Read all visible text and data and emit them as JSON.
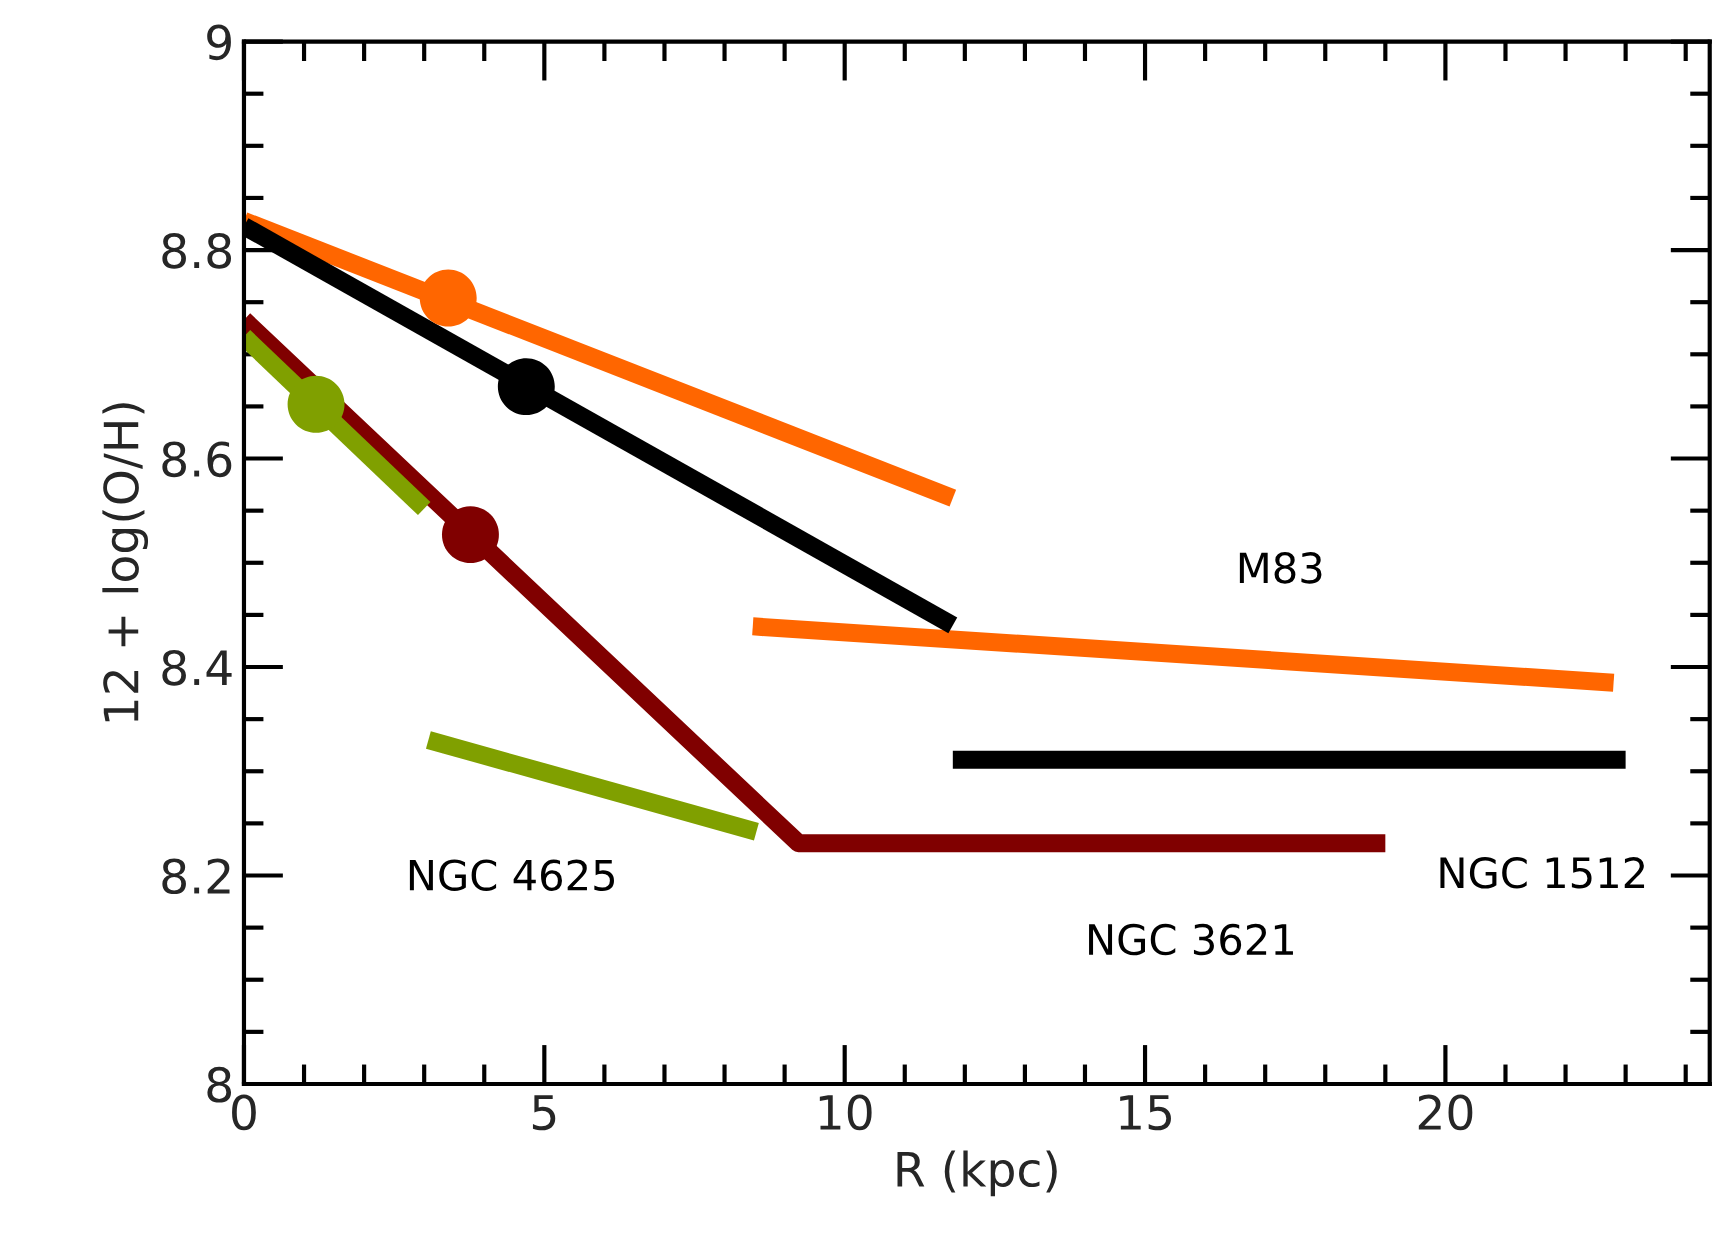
{
  "chart_data": {
    "type": "line",
    "xlabel": "R (kpc)",
    "ylabel": "12 + log(O/H)",
    "xlim": [
      0,
      24.4
    ],
    "ylim": [
      8,
      9
    ],
    "xticks": [
      0,
      5,
      10,
      15,
      20
    ],
    "yticks": [
      8,
      8.2,
      8.4,
      8.6,
      8.8,
      9
    ],
    "grid": false,
    "line_style": "solid",
    "series": [
      {
        "color": "#ff6600",
        "x": [
          0,
          11.8
        ],
        "values": [
          8.828,
          8.562
        ]
      },
      {
        "name": "M83",
        "color": "#ff6600",
        "x": [
          8.47,
          22.8
        ],
        "values": [
          8.439,
          8.385
        ]
      },
      {
        "color": "#000000",
        "x": [
          0,
          11.8
        ],
        "values": [
          8.823,
          8.44
        ]
      },
      {
        "name": "NGC 1512",
        "color": "#000000",
        "x": [
          11.8,
          23.0
        ],
        "values": [
          8.311,
          8.311
        ]
      },
      {
        "name": "NGC 3621",
        "color": "#800000",
        "x": [
          0,
          9.23,
          19.0
        ],
        "values": [
          8.733,
          8.231,
          8.231
        ]
      },
      {
        "color": "#80a000",
        "x": [
          0,
          3.0
        ],
        "values": [
          8.717,
          8.552
        ]
      },
      {
        "name": "NGC 4625",
        "color": "#80a000",
        "x": [
          3.07,
          8.53
        ],
        "values": [
          8.33,
          8.242
        ]
      },
      {
        "type": "scatter",
        "marker": "circle",
        "color": "#ff6600",
        "x": [
          3.4
        ],
        "values": [
          8.754
        ]
      },
      {
        "type": "scatter",
        "marker": "circle",
        "color": "#000000",
        "x": [
          4.7
        ],
        "values": [
          8.669
        ]
      },
      {
        "type": "scatter",
        "marker": "circle",
        "color": "#800000",
        "x": [
          3.77
        ],
        "values": [
          8.527
        ]
      },
      {
        "type": "scatter",
        "marker": "circle",
        "color": "#80a000",
        "x": [
          1.2
        ],
        "values": [
          8.652
        ]
      }
    ]
  }
}
